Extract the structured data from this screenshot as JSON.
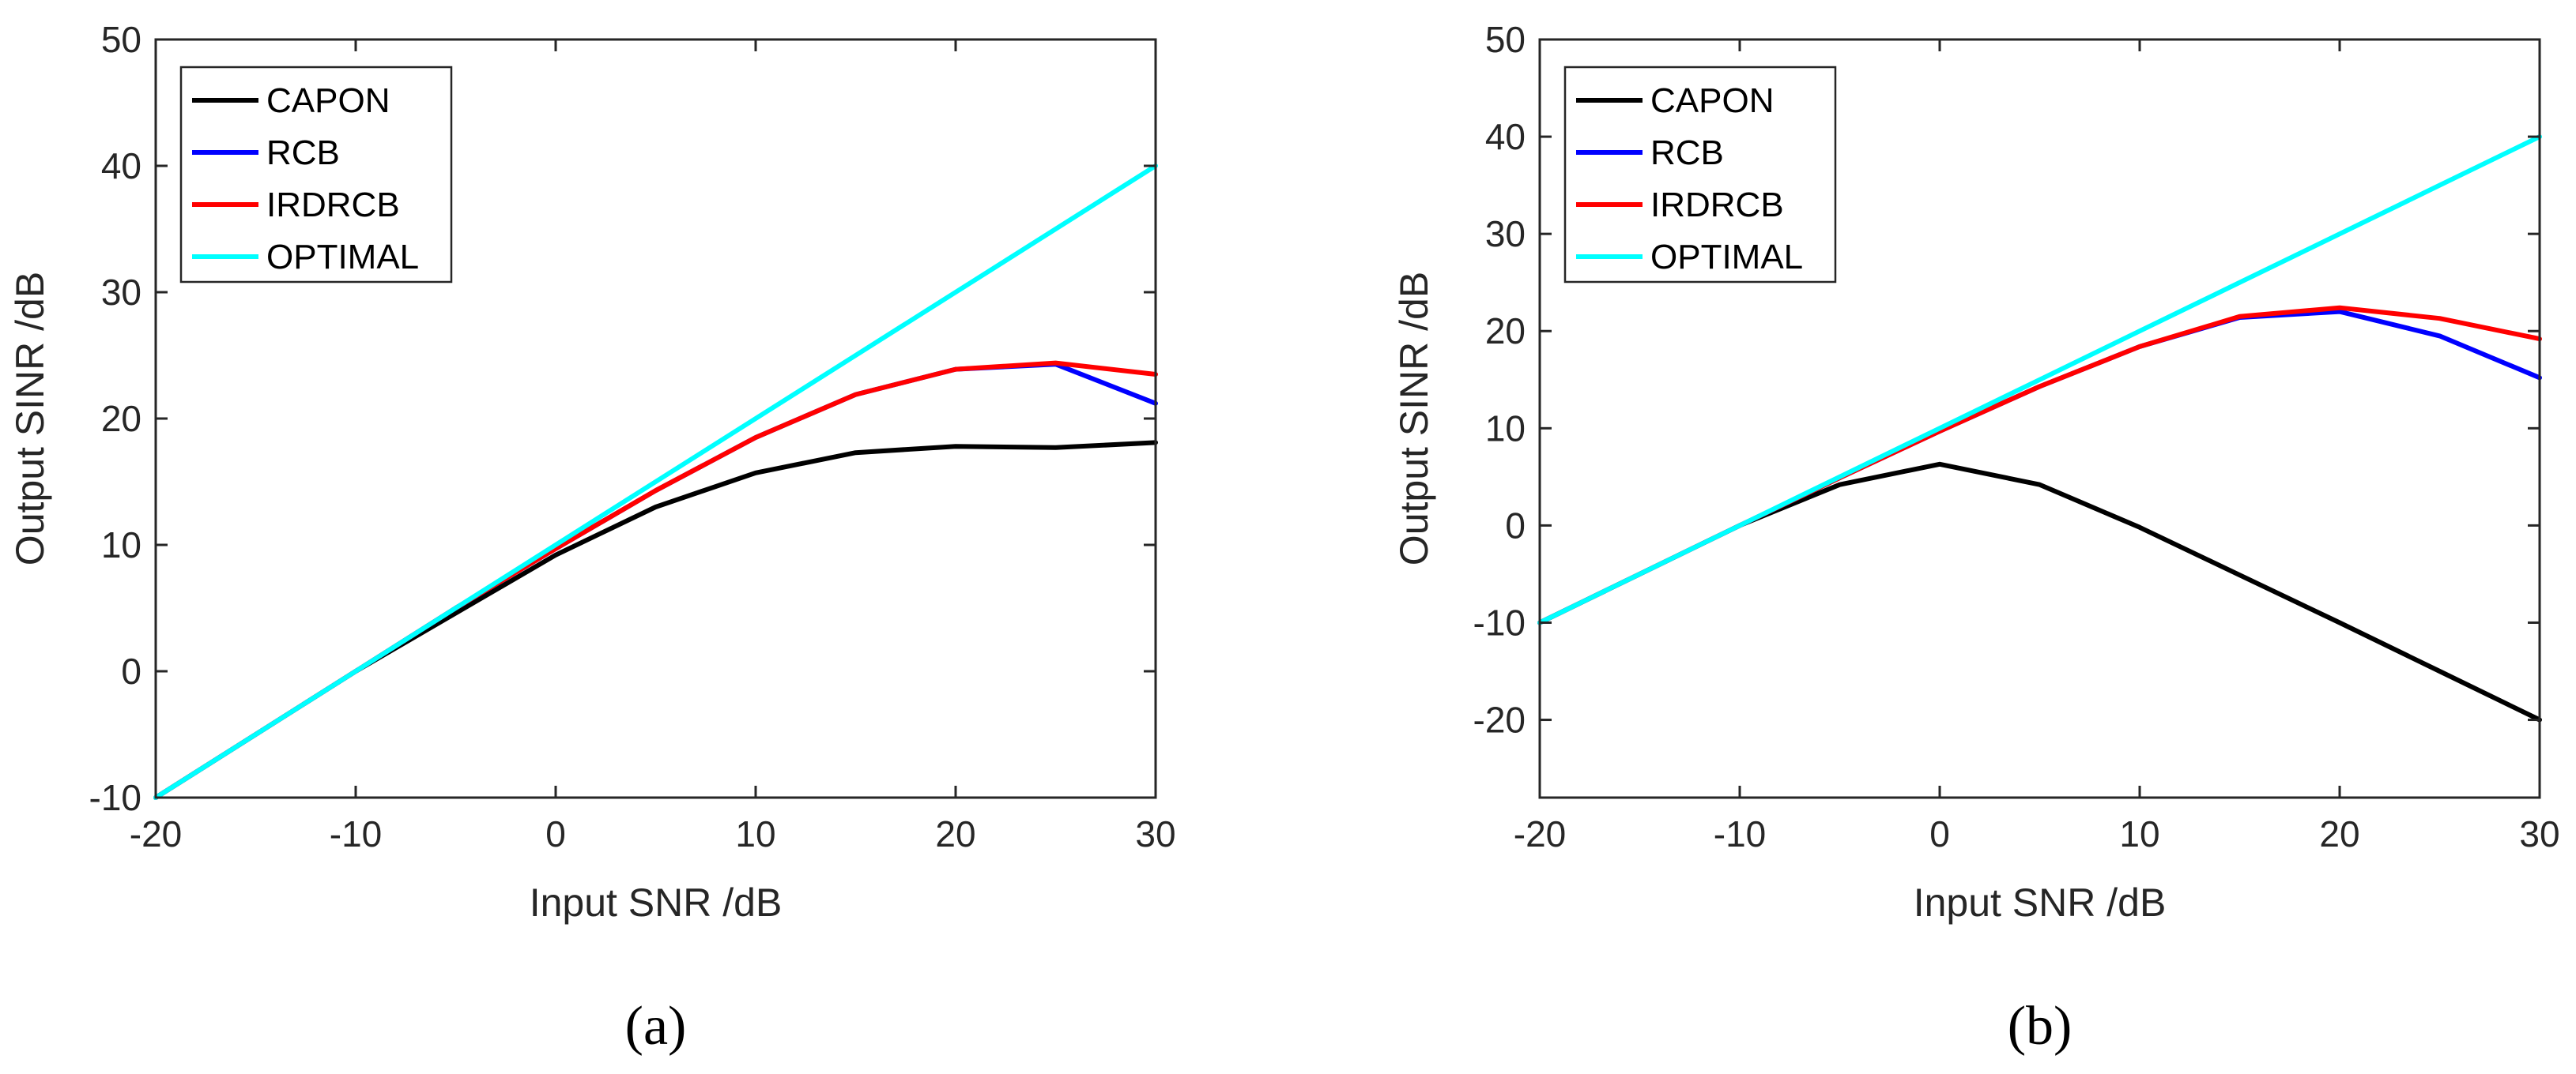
{
  "chart_data": [
    {
      "type": "line",
      "panel_label": "(a)",
      "xlabel": "Input SNR /dB",
      "ylabel": "Output SINR /dB",
      "xlim": [
        -20,
        30
      ],
      "ylim": [
        -10,
        50
      ],
      "xticks": [
        -20,
        -10,
        0,
        10,
        20,
        30
      ],
      "yticks": [
        -10,
        0,
        10,
        20,
        30,
        40,
        50
      ],
      "x": [
        -20,
        -15,
        -10,
        -5,
        0,
        5,
        10,
        15,
        20,
        25,
        30
      ],
      "legend_position": "top-left",
      "series": [
        {
          "name": "CAPON",
          "color": "#000000",
          "values": [
            -10,
            -5,
            0,
            4.6,
            9.2,
            13,
            15.7,
            17.3,
            17.8,
            17.7,
            18.1
          ]
        },
        {
          "name": "RCB",
          "color": "#0000ff",
          "values": [
            -10,
            -5,
            0,
            5,
            9.7,
            14.3,
            18.5,
            21.9,
            23.9,
            24.3,
            21.2
          ]
        },
        {
          "name": "IRDRCB",
          "color": "#ff0000",
          "values": [
            -10,
            -5,
            0,
            5,
            9.7,
            14.3,
            18.5,
            21.9,
            23.9,
            24.4,
            23.5
          ]
        },
        {
          "name": "OPTIMAL",
          "color": "#00ffff",
          "values": [
            -10,
            -5,
            0,
            5,
            10,
            15,
            20,
            25,
            30,
            35,
            40
          ]
        }
      ]
    },
    {
      "type": "line",
      "panel_label": "(b)",
      "xlabel": "Input SNR /dB",
      "ylabel": "Output SINR /dB",
      "xlim": [
        -20,
        30
      ],
      "ylim": [
        -28,
        50
      ],
      "xticks": [
        -20,
        -10,
        0,
        10,
        20,
        30
      ],
      "yticks": [
        -20,
        -10,
        0,
        10,
        20,
        30,
        40,
        50
      ],
      "x": [
        -20,
        -15,
        -10,
        -5,
        0,
        5,
        10,
        15,
        20,
        25,
        30
      ],
      "legend_position": "top-left",
      "series": [
        {
          "name": "CAPON",
          "color": "#000000",
          "values": [
            -10,
            -5,
            0,
            4.2,
            6.3,
            4.2,
            -0.2,
            -5.1,
            -10,
            -15,
            -20
          ]
        },
        {
          "name": "RCB",
          "color": "#0000ff",
          "values": [
            -10,
            -5,
            0,
            4.9,
            9.7,
            14.3,
            18.4,
            21.4,
            22,
            19.5,
            15.2
          ]
        },
        {
          "name": "IRDRCB",
          "color": "#ff0000",
          "values": [
            -10,
            -5,
            0,
            4.9,
            9.7,
            14.3,
            18.4,
            21.5,
            22.4,
            21.3,
            19.2
          ]
        },
        {
          "name": "OPTIMAL",
          "color": "#00ffff",
          "values": [
            -10,
            -5,
            0,
            5,
            10,
            15,
            20,
            25,
            30,
            35,
            40
          ]
        }
      ]
    }
  ]
}
